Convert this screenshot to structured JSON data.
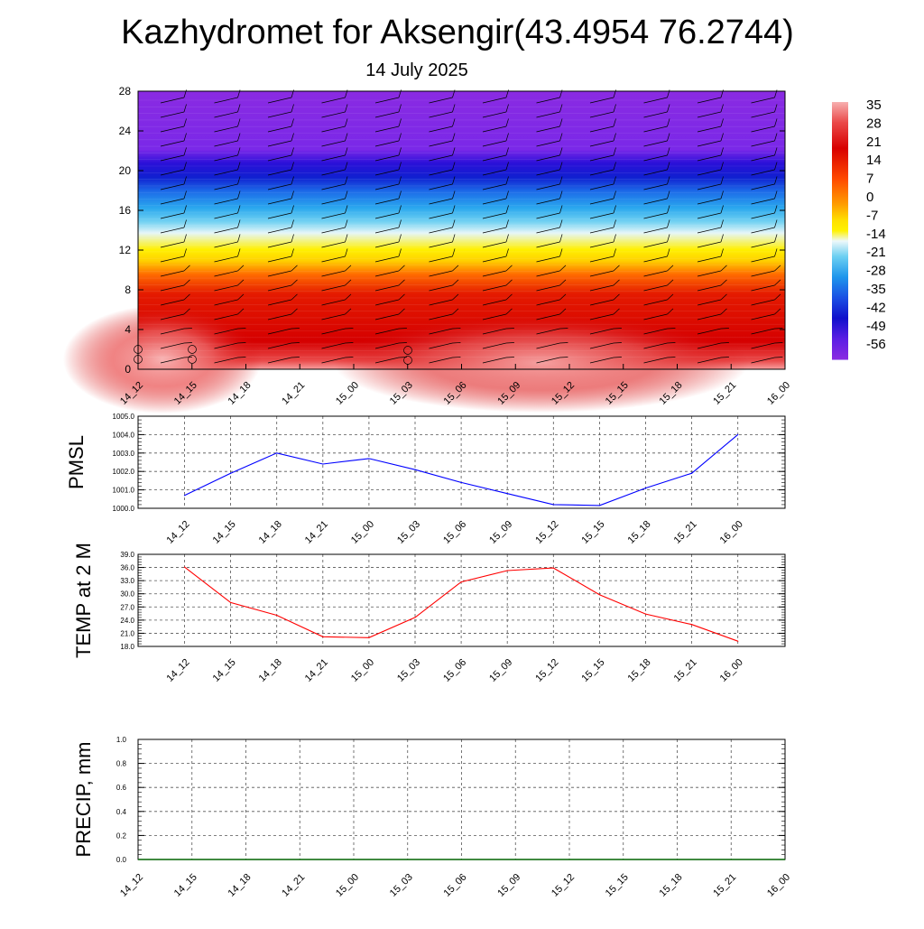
{
  "title": "Kazhydromet for Aksengir(43.4954 76.2744)",
  "subtitle": "14 July 2025",
  "time_labels": [
    "14_12",
    "14_15",
    "14_18",
    "14_21",
    "15_00",
    "15_03",
    "15_06",
    "15_09",
    "15_12",
    "15_15",
    "15_18",
    "15_21",
    "16_00"
  ],
  "colorbar": {
    "labels": [
      "35",
      "28",
      "21",
      "14",
      "7",
      "0",
      "-7",
      "-14",
      "-21",
      "-28",
      "-35",
      "-42",
      "-49",
      "-56"
    ],
    "colors": [
      "#f7a6a6",
      "#ef4a4a",
      "#d60000",
      "#f02a10",
      "#ff7a00",
      "#ffc24a",
      "#fff000",
      "#d8f2f6",
      "#3cb8f0",
      "#1e7fe6",
      "#2040e0",
      "#1010c8",
      "#4d1ae6",
      "#8a2be2"
    ]
  },
  "chart_data": [
    {
      "type": "heatmap",
      "title": "Kazhydromet for Aksengir(43.4954 76.2744)",
      "subtitle": "14 July 2025",
      "x": [
        "14_12",
        "14_15",
        "14_18",
        "14_21",
        "15_00",
        "15_03",
        "15_06",
        "15_09",
        "15_12",
        "15_15",
        "15_18",
        "15_21",
        "16_00"
      ],
      "y_ticks": [
        "0",
        "4",
        "8",
        "12",
        "16",
        "20",
        "24",
        "28"
      ],
      "ylim": [
        0,
        28
      ],
      "colorbar_range": [
        -56,
        35
      ],
      "description": "temperature vs height with wind barbs"
    },
    {
      "type": "line",
      "ylabel": "PMSL",
      "categories": [
        "14_12",
        "14_15",
        "14_18",
        "14_21",
        "15_00",
        "15_03",
        "15_06",
        "15_09",
        "15_12",
        "15_15",
        "15_18",
        "15_21",
        "16_00"
      ],
      "values": [
        1000.7,
        1001.9,
        1003.0,
        1002.4,
        1002.7,
        1002.1,
        1001.4,
        1000.8,
        1000.2,
        1000.15,
        1001.1,
        1001.9,
        1004.0
      ],
      "y_ticks": [
        "1000.0",
        "1001.0",
        "1002.0",
        "1003.0",
        "1004.0",
        "1005.0"
      ],
      "ylim": [
        1000,
        1005
      ],
      "color": "#0000ff",
      "grid": true
    },
    {
      "type": "line",
      "ylabel": "TEMP at 2 M",
      "categories": [
        "14_12",
        "14_15",
        "14_18",
        "14_21",
        "15_00",
        "15_03",
        "15_06",
        "15_09",
        "15_12",
        "15_15",
        "15_18",
        "15_21",
        "16_00"
      ],
      "values": [
        36.1,
        28.0,
        25.1,
        20.2,
        20.0,
        24.6,
        32.7,
        35.3,
        35.9,
        29.8,
        25.4,
        23.0,
        19.2
      ],
      "y_ticks": [
        "18.0",
        "21.0",
        "24.0",
        "27.0",
        "30.0",
        "33.0",
        "36.0",
        "39.0"
      ],
      "ylim": [
        18,
        39
      ],
      "color": "#ff0000",
      "grid": true
    },
    {
      "type": "line",
      "ylabel": "PRECIP, mm",
      "categories": [
        "14_12",
        "14_15",
        "14_18",
        "14_21",
        "15_00",
        "15_03",
        "15_06",
        "15_09",
        "15_12",
        "15_15",
        "15_18",
        "15_21",
        "16_00"
      ],
      "values": [
        0,
        0,
        0,
        0,
        0,
        0,
        0,
        0,
        0,
        0,
        0,
        0,
        0
      ],
      "y_ticks": [
        "0.0",
        "0.2",
        "0.4",
        "0.6",
        "0.8",
        "1.0"
      ],
      "ylim": [
        0,
        1
      ],
      "color": "#006400",
      "grid": true
    }
  ]
}
